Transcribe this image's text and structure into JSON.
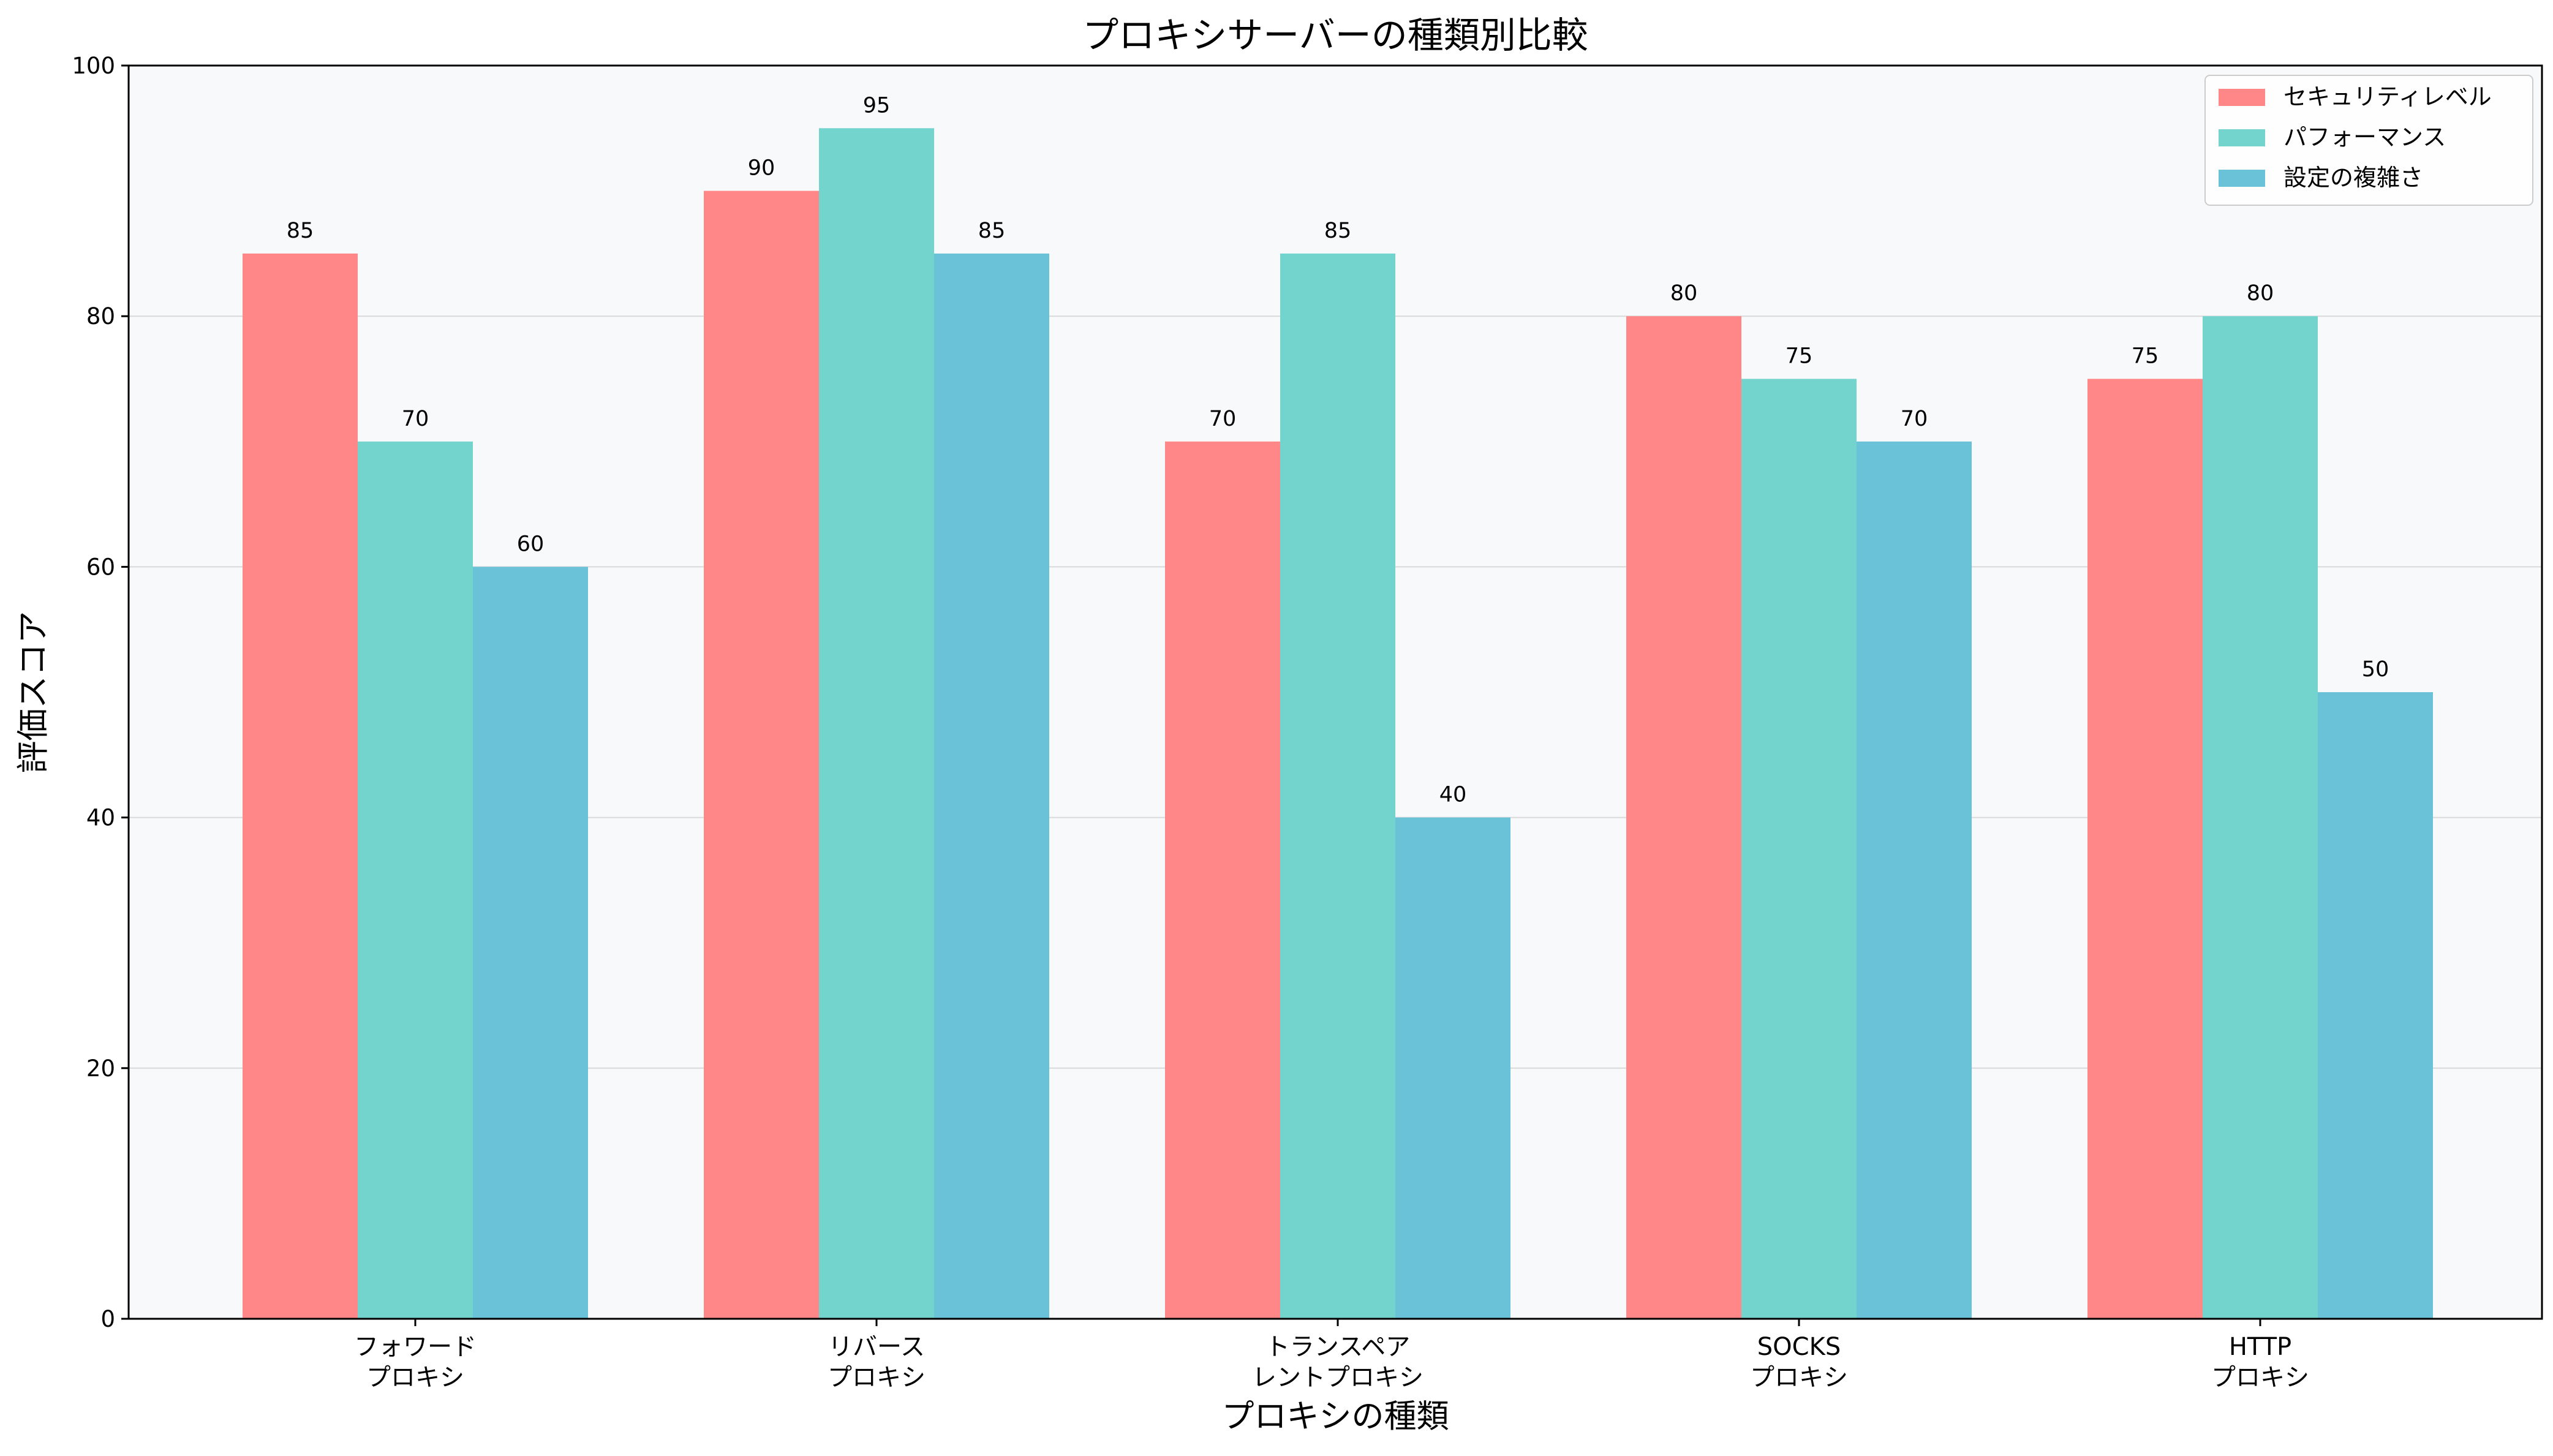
{
  "chart_data": {
    "type": "bar",
    "title": "プロキシサーバーの種類別比較",
    "xlabel": "プロキシの種類",
    "ylabel": "評価スコア",
    "ylim": [
      0,
      100
    ],
    "yticks": [
      0,
      20,
      40,
      60,
      80,
      100
    ],
    "grid": true,
    "legend_position": "top-right",
    "categories": [
      [
        "フォワード",
        "プロキシ"
      ],
      [
        "リバース",
        "プロキシ"
      ],
      [
        "トランスペア",
        "レントプロキシ"
      ],
      [
        "SOCKS",
        "プロキシ"
      ],
      [
        "HTTP",
        "プロキシ"
      ]
    ],
    "series": [
      {
        "name": "セキュリティレベル",
        "color": "#ff8787",
        "values": [
          85,
          90,
          70,
          80,
          75
        ]
      },
      {
        "name": "パフォーマンス",
        "color": "#73d4cd",
        "values": [
          70,
          95,
          85,
          75,
          80
        ]
      },
      {
        "name": "設定の複雑さ",
        "color": "#69c2d8",
        "values": [
          60,
          85,
          40,
          70,
          50
        ]
      }
    ]
  }
}
